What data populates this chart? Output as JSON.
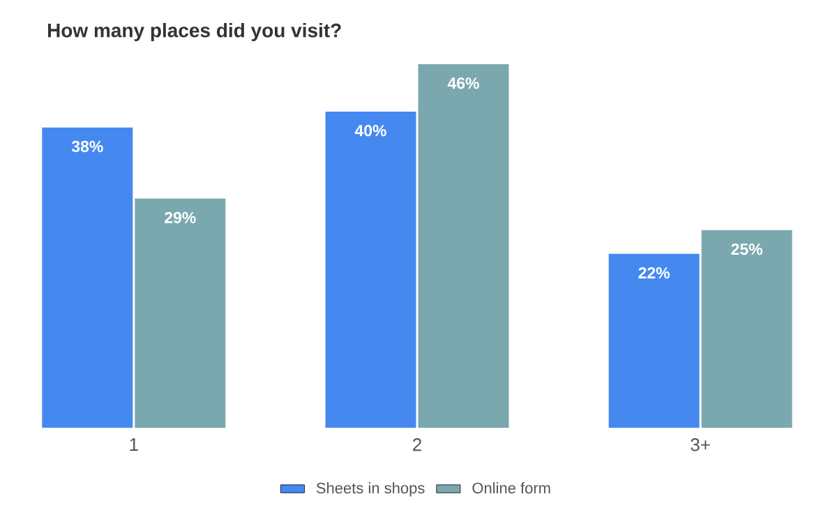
{
  "chart_data": {
    "type": "bar",
    "title": "How many places did you visit?",
    "categories": [
      "1",
      "2",
      "3+"
    ],
    "series": [
      {
        "name": "Sheets in shops",
        "color": "#4589f0",
        "values": [
          38,
          40,
          22
        ],
        "value_labels": [
          "38%",
          "40%",
          "22%"
        ]
      },
      {
        "name": "Online form",
        "color": "#7aa8ae",
        "values": [
          29,
          46,
          25
        ],
        "value_labels": [
          "29%",
          "46%",
          "25%"
        ]
      }
    ],
    "legend": "bottom"
  }
}
